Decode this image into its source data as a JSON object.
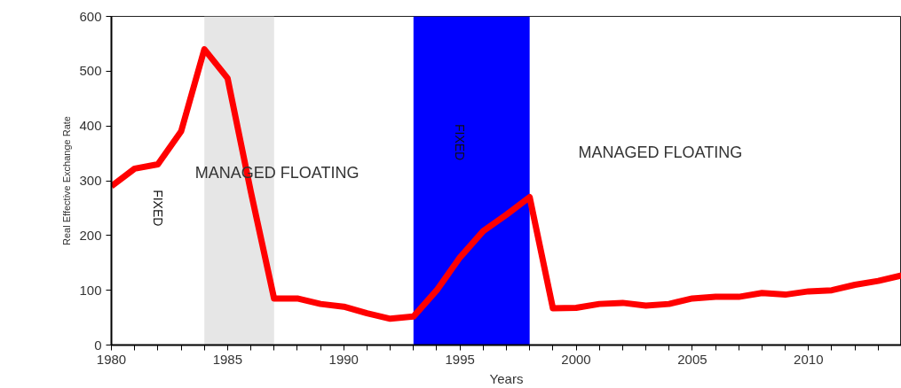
{
  "chart_data": {
    "type": "line",
    "xlabel": "Years",
    "ylabel": "Real Effective Exchange Rate",
    "x": [
      1980,
      1981,
      1982,
      1983,
      1984,
      1985,
      1986,
      1987,
      1988,
      1989,
      1990,
      1991,
      1992,
      1993,
      1994,
      1995,
      1996,
      1997,
      1998,
      1999,
      2000,
      2001,
      2002,
      2003,
      2004,
      2005,
      2006,
      2007,
      2008,
      2009,
      2010,
      2011,
      2012,
      2013,
      2014
    ],
    "series": [
      {
        "color": "#ff0000",
        "values": [
          290,
          322,
          330,
          390,
          540,
          487,
          280,
          85,
          85,
          75,
          70,
          58,
          48,
          52,
          100,
          160,
          208,
          238,
          270,
          67,
          68,
          75,
          77,
          72,
          75,
          85,
          88,
          88,
          95,
          92,
          98,
          100,
          110,
          117,
          127
        ]
      }
    ],
    "xlim": [
      1980,
      2014
    ],
    "ylim": [
      0,
      600
    ],
    "xticks": [
      1980,
      {
        "value": 1981,
        "label": null
      },
      {
        "value": 1982,
        "label": null
      },
      {
        "value": 1983,
        "label": null
      },
      {
        "value": 1984,
        "label": null
      },
      1985,
      {
        "value": 1986,
        "label": null
      },
      {
        "value": 1987,
        "label": null
      },
      {
        "value": 1988,
        "label": null
      },
      {
        "value": 1989,
        "label": null
      },
      1990,
      {
        "value": 1991,
        "label": null
      },
      {
        "value": 1992,
        "label": null
      },
      {
        "value": 1993,
        "label": null
      },
      {
        "value": 1994,
        "label": null
      },
      1995,
      {
        "value": 1996,
        "label": null
      },
      {
        "value": 1997,
        "label": null
      },
      {
        "value": 1998,
        "label": null
      },
      {
        "value": 1999,
        "label": null
      },
      2000,
      {
        "value": 2001,
        "label": null
      },
      {
        "value": 2002,
        "label": null
      },
      {
        "value": 2003,
        "label": null
      },
      {
        "value": 2004,
        "label": null
      },
      2005,
      {
        "value": 2006,
        "label": null
      },
      {
        "value": 2007,
        "label": null
      },
      {
        "value": 2008,
        "label": null
      },
      {
        "value": 2009,
        "label": null
      },
      2010,
      {
        "value": 2011,
        "label": null
      },
      {
        "value": 2012,
        "label": null
      },
      {
        "value": 2013,
        "label": null
      }
    ],
    "yticks": [
      0,
      100,
      200,
      300,
      400,
      500,
      600
    ],
    "bands": [
      {
        "axis": "x",
        "from": 1984,
        "to": 1987,
        "color": "#e6e6e6"
      },
      {
        "axis": "x",
        "from": 1993,
        "to": 1998,
        "color": "#0000ff"
      }
    ],
    "annotations": [
      "FIXED",
      "MANAGED FLOATING",
      "FIXED",
      "MANAGED FLOATING"
    ],
    "grid": false,
    "line_style": "solid",
    "marker": "none"
  }
}
